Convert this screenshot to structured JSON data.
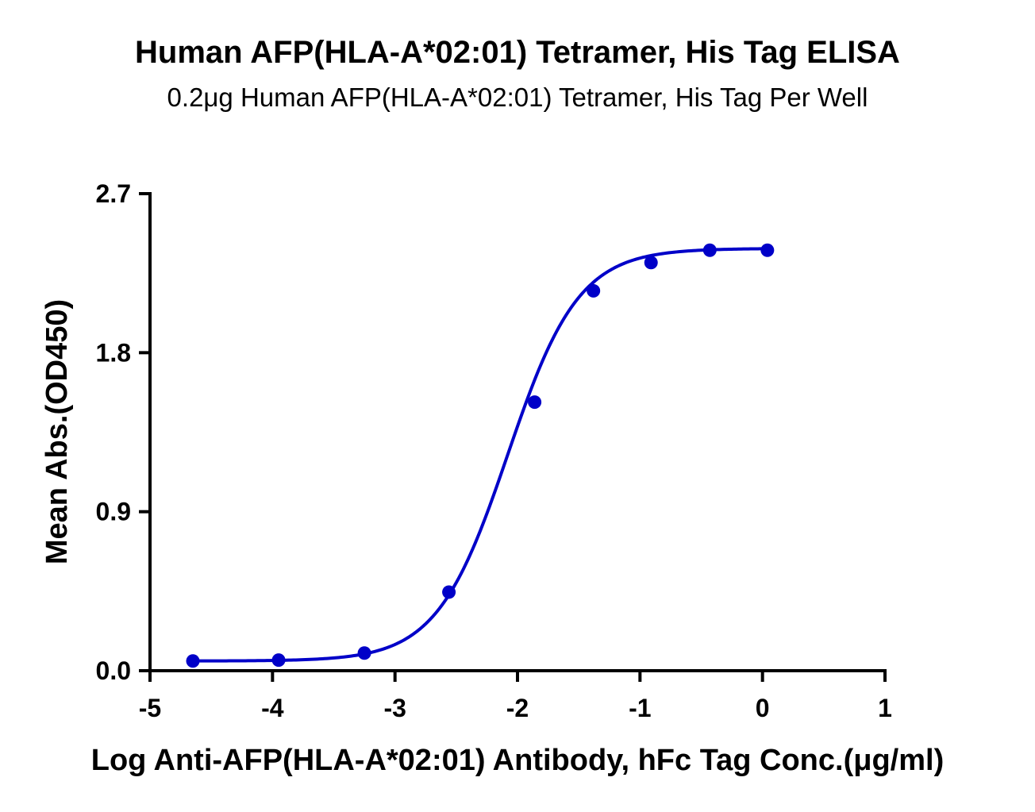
{
  "chart_data": {
    "type": "scatter",
    "title": "Human AFP(HLA-A*02:01) Tetramer, His Tag ELISA",
    "subtitle": "0.2μg Human AFP(HLA-A*02:01) Tetramer, His Tag Per Well",
    "xlabel": "Log Anti-AFP(HLA-A*02:01) Antibody, hFc Tag Conc.(μg/ml)",
    "ylabel": "Mean Abs.(OD450)",
    "xlim": [
      -5,
      1
    ],
    "ylim": [
      0,
      2.7
    ],
    "xticks": [
      -5,
      -4,
      -3,
      -2,
      -1,
      0,
      1
    ],
    "yticks": [
      0.0,
      0.9,
      1.8,
      2.7
    ],
    "xtick_labels": [
      "-5",
      "-4",
      "-3",
      "-2",
      "-1",
      "0",
      "1"
    ],
    "ytick_labels": [
      "0.0",
      "0.9",
      "1.8",
      "2.7"
    ],
    "grid": false,
    "series": [
      {
        "color": "#0000c8",
        "x": [
          -4.65,
          -3.95,
          -3.25,
          -2.56,
          -1.86,
          -1.38,
          -0.91,
          -0.43,
          0.04
        ],
        "y": [
          0.055,
          0.06,
          0.1,
          0.445,
          1.52,
          2.15,
          2.31,
          2.38,
          2.38
        ],
        "fit": {
          "model": "4PL",
          "bottom": 0.055,
          "top": 2.39,
          "logEC50": -2.08,
          "hill": 1.5,
          "x_range": [
            -4.65,
            0.04
          ]
        }
      }
    ]
  }
}
